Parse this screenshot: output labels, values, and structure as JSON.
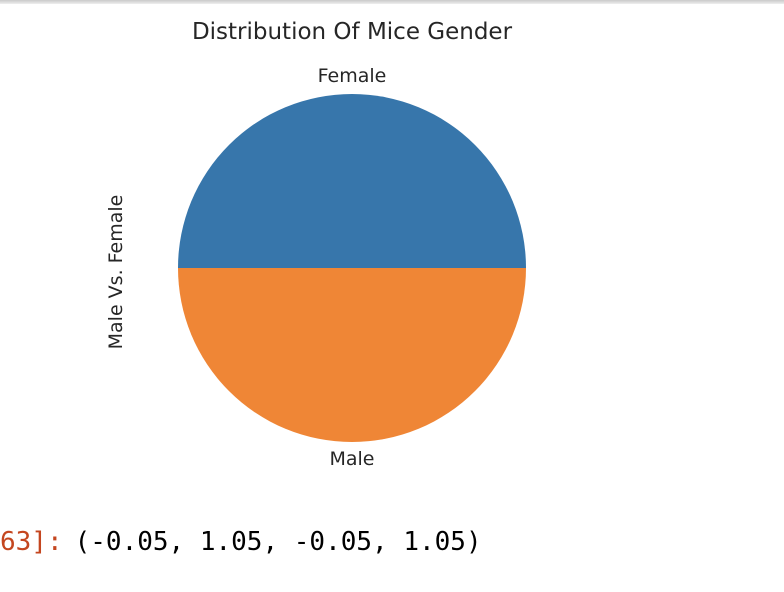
{
  "chart_data": {
    "type": "pie",
    "title": "Distribution Of Mice Gender",
    "ylabel": "Male Vs. Female",
    "categories": [
      "Female",
      "Male"
    ],
    "values": [
      50,
      50
    ],
    "colors": [
      "#3776ab",
      "#ef8636"
    ]
  },
  "output": {
    "prompt": "63]:",
    "value": "(-0.05, 1.05, -0.05, 1.05)"
  }
}
